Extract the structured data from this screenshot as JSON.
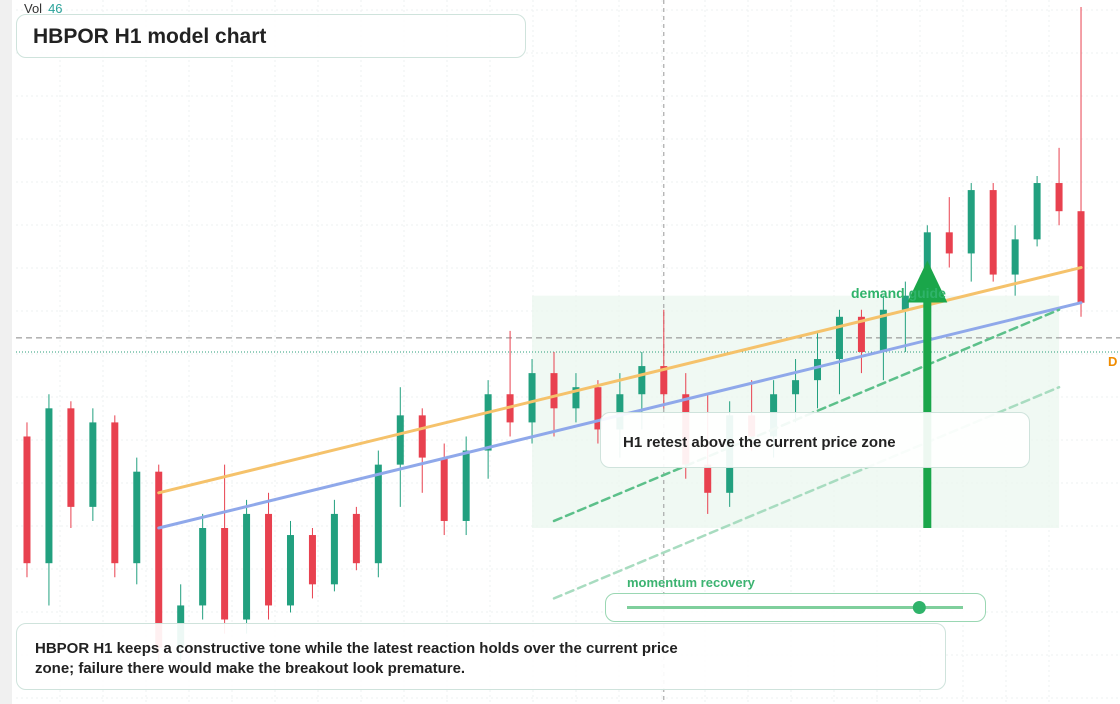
{
  "chart_data": {
    "type": "candlestick",
    "title": "HBPOR H1 model chart",
    "volume_label": "Vol",
    "volume_value": 46,
    "up_color": "#22a07f",
    "down_color": "#e8414f",
    "ylim": [
      0,
      100
    ],
    "open": [
      38,
      20,
      42,
      28,
      40,
      20,
      33,
      8,
      14,
      25,
      12,
      27,
      14,
      24,
      17,
      27,
      20,
      34,
      41,
      35,
      26,
      36,
      44,
      40,
      47,
      42,
      45,
      39,
      44,
      48,
      44,
      34,
      30,
      41,
      38,
      44,
      46,
      49,
      55,
      50,
      56,
      58,
      67,
      64,
      73,
      61,
      66,
      74,
      70
    ],
    "high": [
      40,
      44,
      43,
      42,
      41,
      35,
      34,
      17,
      27,
      34,
      29,
      30,
      26,
      25,
      29,
      28,
      36,
      45,
      42,
      37,
      38,
      46,
      53,
      49,
      50,
      47,
      46,
      47,
      50,
      56,
      47,
      44,
      43,
      46,
      46,
      49,
      53,
      56,
      56,
      58,
      60,
      68,
      72,
      74,
      74,
      68,
      75,
      79,
      99
    ],
    "low": [
      18,
      14,
      25,
      26,
      18,
      17,
      6,
      6,
      12,
      10,
      10,
      12,
      13,
      15,
      16,
      19,
      18,
      28,
      30,
      24,
      24,
      32,
      38,
      37,
      38,
      40,
      37,
      35,
      39,
      42,
      32,
      27,
      28,
      36,
      35,
      40,
      42,
      44,
      47,
      46,
      50,
      55,
      62,
      60,
      60,
      58,
      65,
      68,
      55
    ],
    "close": [
      20,
      42,
      28,
      40,
      20,
      33,
      8,
      14,
      25,
      12,
      27,
      14,
      24,
      17,
      27,
      20,
      34,
      41,
      35,
      26,
      36,
      44,
      40,
      47,
      42,
      45,
      39,
      44,
      48,
      44,
      34,
      30,
      41,
      38,
      44,
      46,
      49,
      55,
      50,
      56,
      58,
      67,
      64,
      73,
      61,
      66,
      74,
      70,
      57
    ],
    "trend_lines": [
      {
        "color": "#f5c26b",
        "style": "solid",
        "from": [
          6,
          30
        ],
        "to": [
          48,
          62
        ]
      },
      {
        "color": "#8fa8ea",
        "style": "solid",
        "from": [
          6,
          25
        ],
        "to": [
          48,
          57
        ]
      },
      {
        "color": "#5cc08a",
        "style": "dashed",
        "from": [
          24,
          26
        ],
        "to": [
          47,
          56
        ]
      },
      {
        "color": "#a8dcc0",
        "style": "dashed",
        "from": [
          24,
          15
        ],
        "to": [
          47,
          45
        ]
      }
    ],
    "levels": [
      {
        "value": 52,
        "style": "dashed",
        "color": "#888888"
      },
      {
        "value": 50,
        "style": "dotted",
        "color": "#2a9d7a"
      }
    ],
    "level_tag": "D",
    "crosshair_index": 29,
    "zone": {
      "from": 23,
      "to": 47,
      "low": 25,
      "high": 58
    },
    "arrow": {
      "index": 41,
      "from": 25,
      "to": 63
    },
    "zone_label": "demand guide",
    "callout": "H1 retest above the current price zone",
    "slider_label": "momentum recovery",
    "slider_value": 87,
    "footnote": "HBPOR H1 keeps a constructive tone while the latest reaction holds over the current price zone; failure there would make the breakout look premature."
  }
}
